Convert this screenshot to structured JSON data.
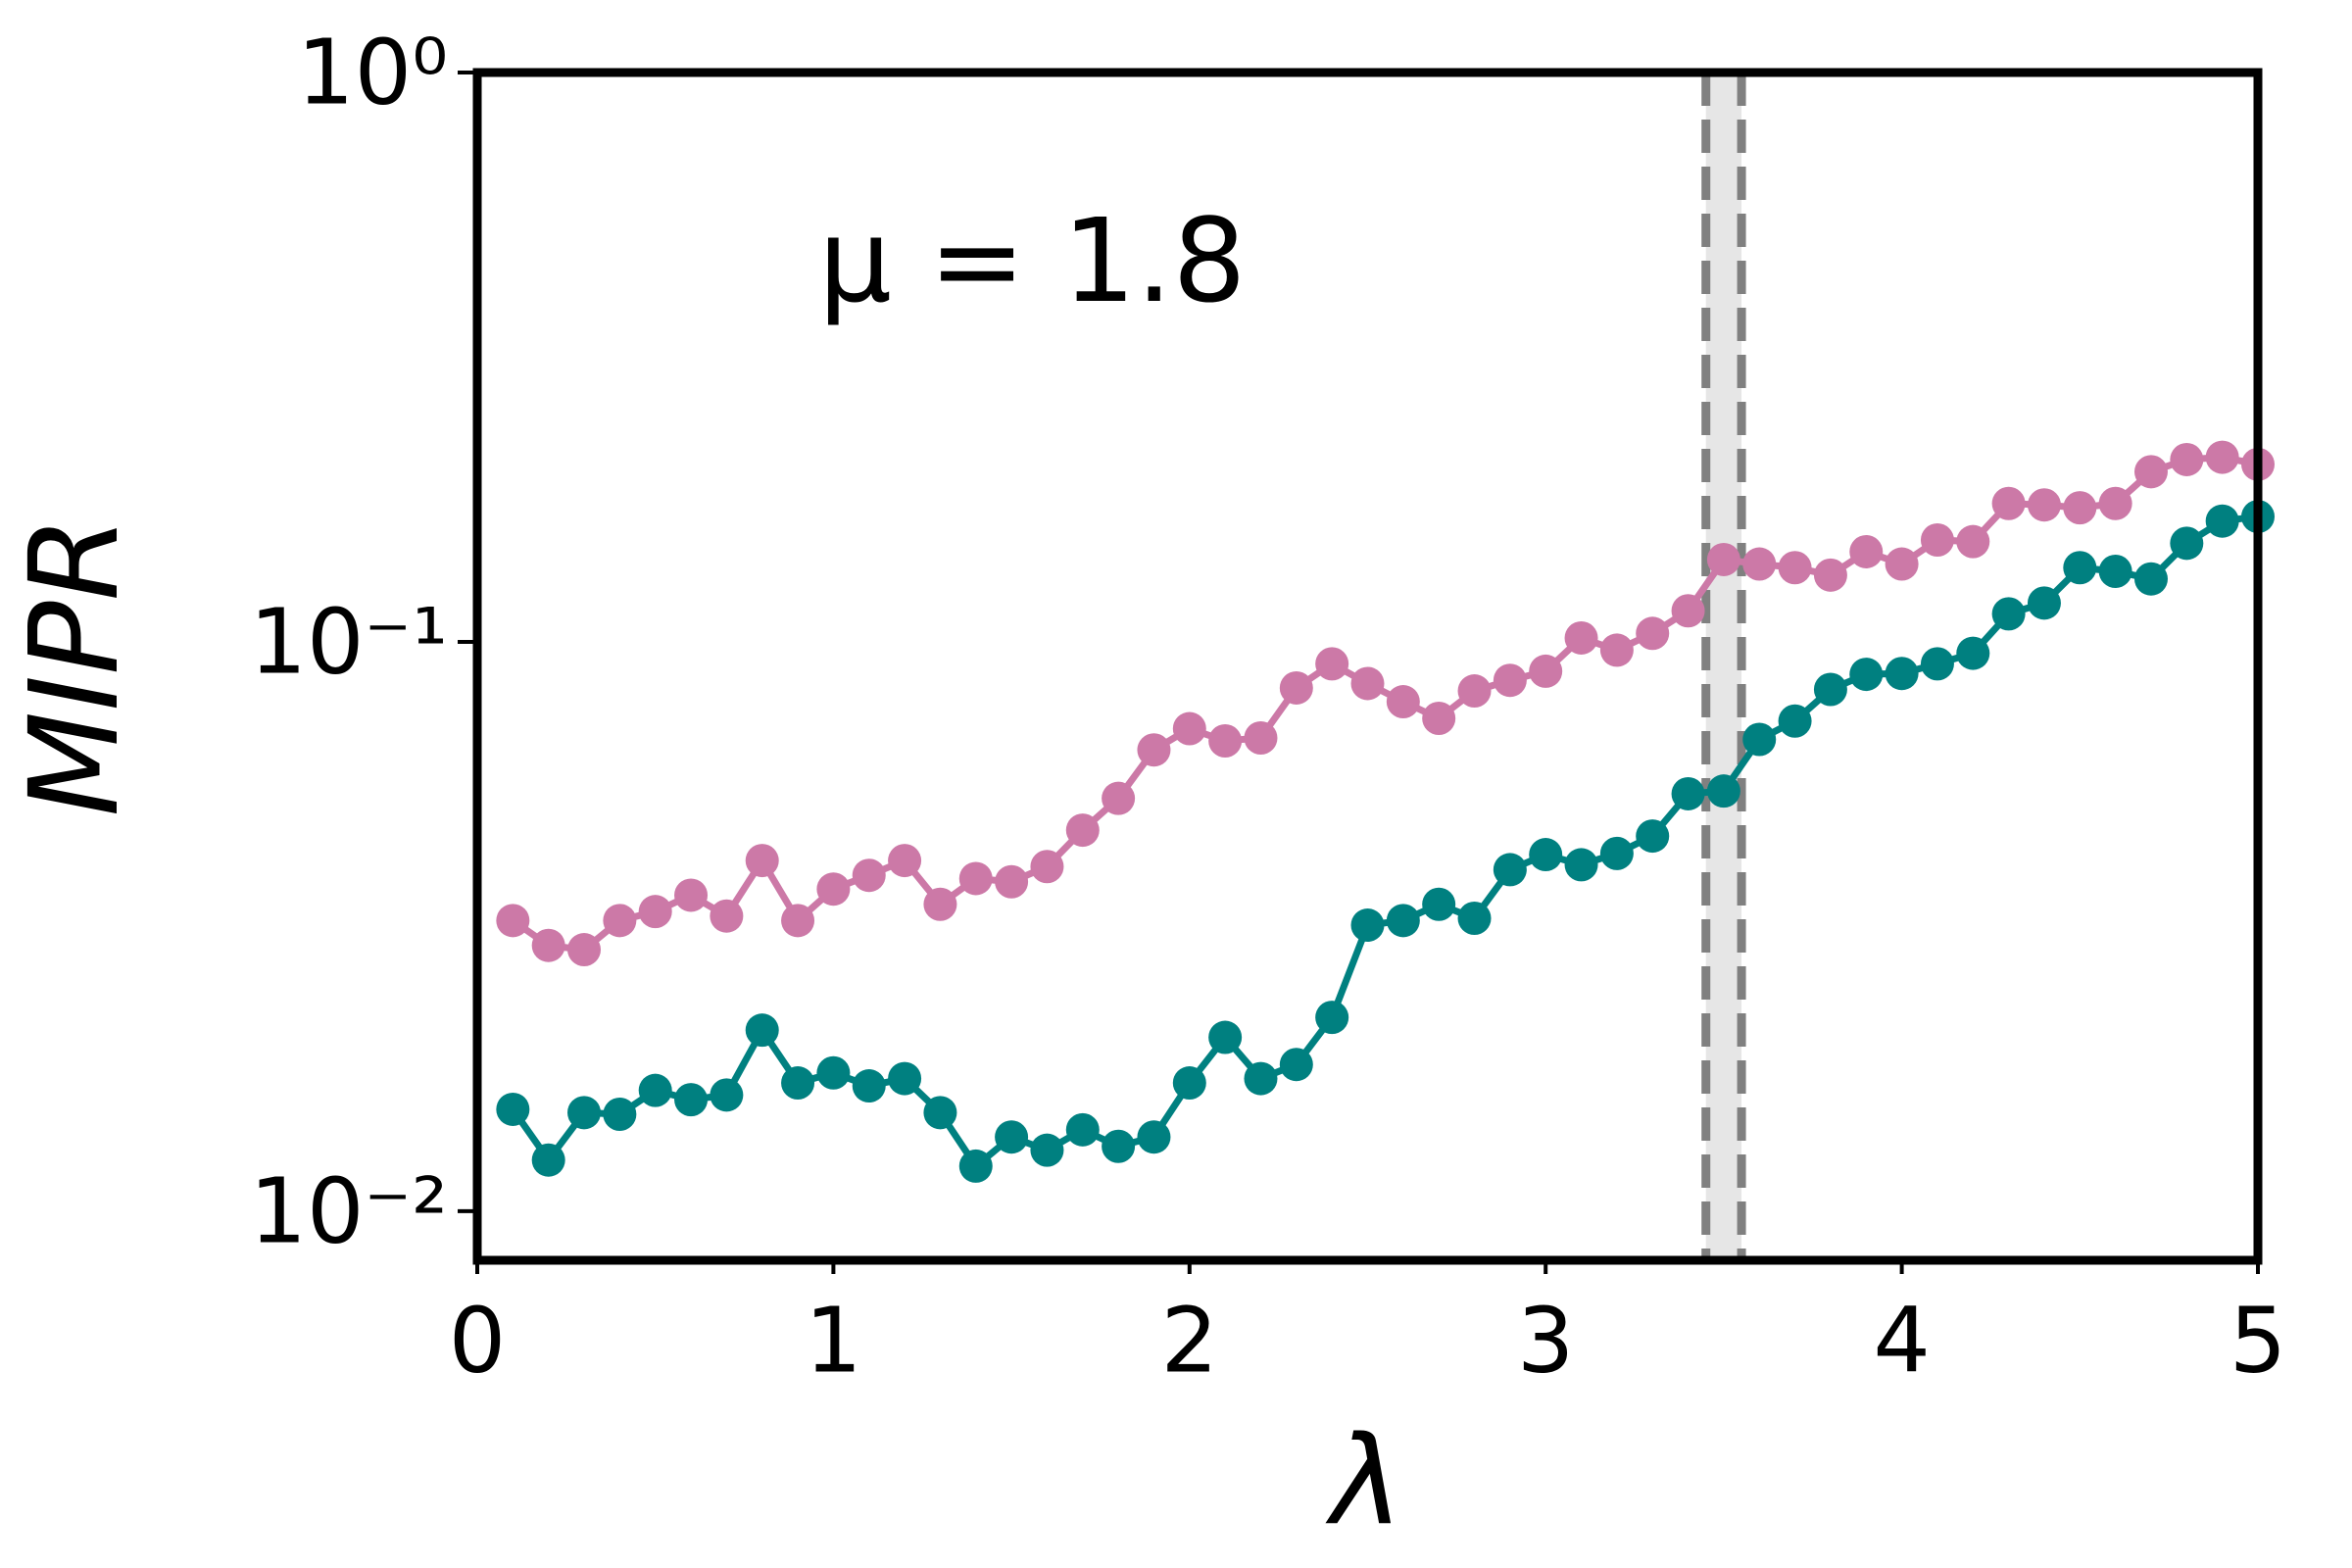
{
  "chart_data": {
    "type": "line",
    "annotation": "μ = 1.8",
    "x_label": "λ",
    "y_label": "MIPR",
    "log_y": true,
    "xlim": [
      0,
      5
    ],
    "xticks": [
      0,
      1,
      2,
      3,
      4,
      5
    ],
    "ylim": [
      0.0082,
      1
    ],
    "yticks": [
      {
        "value": 0.01,
        "label": "10⁻²"
      },
      {
        "value": 0.1,
        "label": "10⁻¹"
      },
      {
        "value": 1,
        "label": "10⁰"
      }
    ],
    "band": [
      3.45,
      3.55
    ],
    "band_color": "#e6e6e6",
    "band_line_color": "#808080",
    "x": [
      0.1,
      0.2,
      0.3,
      0.4,
      0.5,
      0.6,
      0.7,
      0.8,
      0.9,
      1.0,
      1.1,
      1.2,
      1.3,
      1.4,
      1.5,
      1.6,
      1.7,
      1.8,
      1.9,
      2.0,
      2.1,
      2.2,
      2.3,
      2.4,
      2.5,
      2.6,
      2.7,
      2.8,
      2.9,
      3.0,
      3.1,
      3.2,
      3.3,
      3.4,
      3.5,
      3.6,
      3.7,
      3.8,
      3.9,
      4.0,
      4.1,
      4.2,
      4.3,
      4.4,
      4.5,
      4.6,
      4.7,
      4.8,
      4.9,
      5.0
    ],
    "series": [
      {
        "color": "#cc79a7",
        "values": [
          0.0324,
          0.0293,
          0.0288,
          0.0324,
          0.0336,
          0.0359,
          0.033,
          0.0413,
          0.0324,
          0.0368,
          0.0389,
          0.0413,
          0.0346,
          0.0384,
          0.0379,
          0.0403,
          0.0467,
          0.0531,
          0.0646,
          0.0704,
          0.067,
          0.0678,
          0.083,
          0.0915,
          0.0845,
          0.0785,
          0.0734,
          0.082,
          0.0856,
          0.0888,
          0.1016,
          0.0967,
          0.1035,
          0.1134,
          0.1395,
          0.137,
          0.135,
          0.131,
          0.144,
          0.137,
          0.151,
          0.15,
          0.175,
          0.174,
          0.172,
          0.175,
          0.199,
          0.209,
          0.211,
          0.205
        ]
      },
      {
        "color": "#008080",
        "values": [
          0.0151,
          0.0123,
          0.0149,
          0.0148,
          0.0163,
          0.0157,
          0.016,
          0.0208,
          0.0168,
          0.0175,
          0.0166,
          0.0171,
          0.0149,
          0.012,
          0.0135,
          0.0128,
          0.0139,
          0.013,
          0.0135,
          0.0168,
          0.0202,
          0.0171,
          0.0181,
          0.0219,
          0.0318,
          0.0324,
          0.0346,
          0.0327,
          0.0398,
          0.0423,
          0.0406,
          0.0425,
          0.0456,
          0.0541,
          0.0547,
          0.0674,
          0.0726,
          0.0825,
          0.0877,
          0.088,
          0.0915,
          0.0955,
          0.112,
          0.117,
          0.135,
          0.133,
          0.129,
          0.149,
          0.163,
          0.166
        ]
      }
    ]
  }
}
